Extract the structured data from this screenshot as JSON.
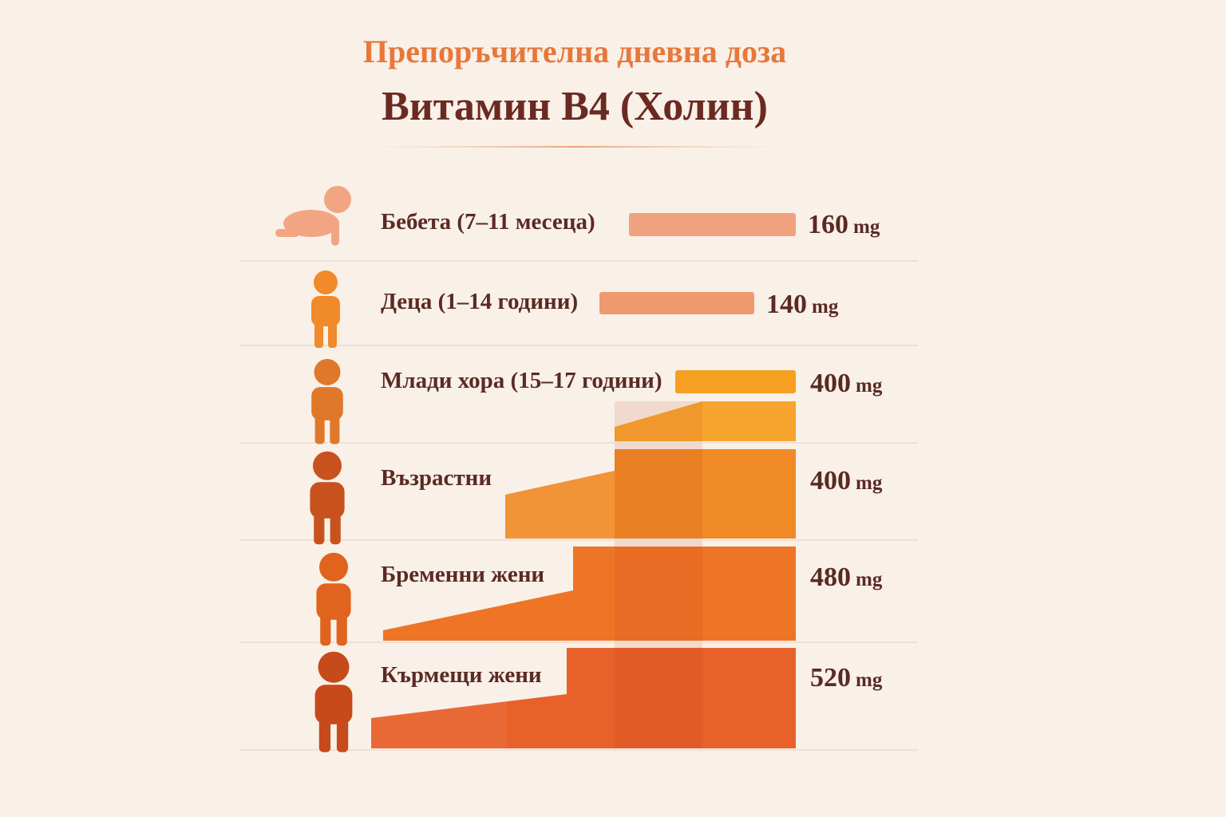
{
  "header": {
    "subtitle": "Препоръчителна дневна доза",
    "title": "Витамин B4 (Холин)"
  },
  "rows": [
    {
      "label": "Бебета (7–11 месеца)",
      "amount": 160,
      "unit": "mg"
    },
    {
      "label": "Деца (1–14 години)",
      "amount": 140,
      "unit": "mg"
    },
    {
      "label": "Млади хора (15–17 години)",
      "amount": 400,
      "unit": "mg"
    },
    {
      "label": "Възрастни",
      "amount": 400,
      "unit": "mg"
    },
    {
      "label": "Бременни жени",
      "amount": 480,
      "unit": "mg"
    },
    {
      "label": "Кърмещи жени",
      "amount": 520,
      "unit": "mg"
    }
  ]
}
